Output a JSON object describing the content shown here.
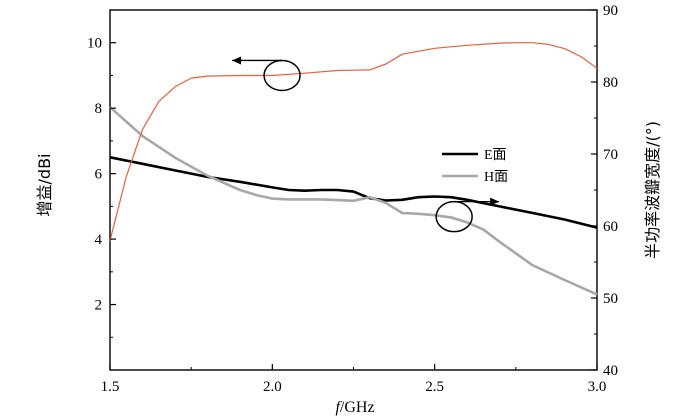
{
  "chart_data": {
    "type": "line",
    "xlabel_italic": "f",
    "xlabel_unit": "/GHz",
    "ylabel_left": "增益/dBi",
    "ylabel_right": "半功率波瓣宽度/(°)",
    "xlim": [
      1.5,
      3.0
    ],
    "ylim_left": [
      0,
      11
    ],
    "ylim_right": [
      40,
      90
    ],
    "x_ticks": [
      "1.5",
      "2.0",
      "2.5",
      "3.0"
    ],
    "y_left_ticks": [
      "2",
      "4",
      "6",
      "8",
      "10"
    ],
    "y_right_ticks": [
      "40",
      "50",
      "60",
      "70",
      "80",
      "90"
    ],
    "grid": false,
    "legend_position": "right-center",
    "series": [
      {
        "name": "E面",
        "axis": "left",
        "color": "#000000",
        "x": [
          1.5,
          1.6,
          1.7,
          1.8,
          1.9,
          2.0,
          2.05,
          2.1,
          2.15,
          2.2,
          2.25,
          2.3,
          2.35,
          2.4,
          2.45,
          2.5,
          2.55,
          2.6,
          2.65,
          2.7,
          2.8,
          2.9,
          3.0
        ],
        "y": [
          6.5,
          6.3,
          6.1,
          5.9,
          5.75,
          5.58,
          5.5,
          5.48,
          5.5,
          5.5,
          5.45,
          5.25,
          5.18,
          5.2,
          5.28,
          5.3,
          5.28,
          5.2,
          5.1,
          5.0,
          4.8,
          4.6,
          4.35
        ]
      },
      {
        "name": "H面",
        "axis": "right",
        "color": "#a8a8a8",
        "x": [
          1.5,
          1.6,
          1.7,
          1.8,
          1.9,
          1.95,
          2.0,
          2.05,
          2.1,
          2.15,
          2.2,
          2.25,
          2.3,
          2.35,
          2.4,
          2.45,
          2.5,
          2.55,
          2.6,
          2.65,
          2.7,
          2.8,
          2.9,
          3.0
        ],
        "y": [
          76.5,
          72.5,
          69.5,
          67,
          65,
          64.3,
          63.8,
          63.7,
          63.7,
          63.7,
          63.6,
          63.5,
          64,
          63.2,
          61.8,
          61.7,
          61.5,
          61.2,
          60.5,
          59.5,
          57.8,
          54.6,
          52.5,
          50.5
        ]
      },
      {
        "name": "",
        "axis": "left",
        "color": "#e8603c",
        "x": [
          1.5,
          1.55,
          1.6,
          1.65,
          1.7,
          1.75,
          1.8,
          1.9,
          2.0,
          2.1,
          2.2,
          2.25,
          2.3,
          2.35,
          2.4,
          2.5,
          2.6,
          2.7,
          2.75,
          2.8,
          2.85,
          2.9,
          2.95,
          3.0
        ],
        "y": [
          3.95,
          5.9,
          7.35,
          8.2,
          8.65,
          8.92,
          8.98,
          9.0,
          9.0,
          9.07,
          9.15,
          9.16,
          9.17,
          9.35,
          9.65,
          9.83,
          9.92,
          9.99,
          10.0,
          10.0,
          9.95,
          9.82,
          9.58,
          9.22
        ]
      }
    ],
    "annotations": [
      {
        "type": "ellipse-arrow",
        "target_axis": "left",
        "direction": "left",
        "at_x": 2.03,
        "at_y": 9.0
      },
      {
        "type": "ellipse-arrow",
        "target_axis": "right",
        "direction": "right",
        "at_x": 2.56,
        "at_y": 61.3
      }
    ]
  }
}
